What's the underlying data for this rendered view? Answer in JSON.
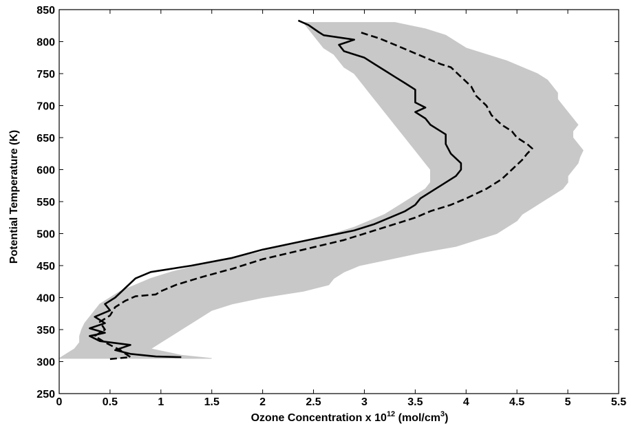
{
  "chart_data": {
    "type": "line",
    "title": "",
    "xlabel": {
      "prefix": "Ozone Concentration x 10",
      "exponent": "12",
      "unit_open": " (mol/cm",
      "unit_exponent": "3",
      "unit_close": ")"
    },
    "ylabel": "Potential Temperature (K)",
    "xlim": [
      0,
      5.5
    ],
    "ylim": [
      250,
      850
    ],
    "xticks": [
      "0",
      "0.5",
      "1",
      "1.5",
      "2",
      "2.5",
      "3",
      "3.5",
      "4",
      "4.5",
      "5",
      "5.5"
    ],
    "yticks": [
      "250",
      "300",
      "350",
      "400",
      "450",
      "500",
      "550",
      "600",
      "650",
      "700",
      "750",
      "800",
      "850"
    ],
    "grid": false,
    "legend": "none",
    "colors": {
      "envelope": "#c8c8c8",
      "solid_series": "#000000",
      "dashed_series": "#000000",
      "axes": "#000000"
    },
    "envelope": {
      "name": "",
      "theta": [
        305,
        310,
        320,
        330,
        340,
        350,
        360,
        370,
        380,
        390,
        400,
        410,
        420,
        430,
        440,
        450,
        460,
        470,
        480,
        490,
        500,
        510,
        520,
        530,
        540,
        550,
        560,
        570,
        580,
        590,
        600,
        610,
        620,
        630,
        640,
        650,
        660,
        670,
        680,
        690,
        700,
        710,
        720,
        730,
        740,
        750,
        760,
        770,
        780,
        790,
        800,
        810,
        820,
        830
      ],
      "x_min": [
        0.0,
        0.05,
        0.15,
        0.2,
        0.2,
        0.22,
        0.25,
        0.3,
        0.35,
        0.4,
        0.5,
        0.6,
        0.75,
        0.9,
        1.1,
        1.35,
        1.65,
        1.95,
        2.2,
        2.45,
        2.7,
        2.9,
        3.05,
        3.2,
        3.3,
        3.4,
        3.5,
        3.6,
        3.65,
        3.65,
        3.65,
        3.6,
        3.55,
        3.5,
        3.45,
        3.4,
        3.35,
        3.3,
        3.25,
        3.2,
        3.15,
        3.1,
        3.05,
        3.0,
        2.95,
        2.9,
        2.8,
        2.75,
        2.7,
        2.6,
        2.55,
        2.5,
        2.45,
        2.4
      ],
      "x_max": [
        1.5,
        1.2,
        0.9,
        1.0,
        1.1,
        1.2,
        1.3,
        1.4,
        1.5,
        1.7,
        2.0,
        2.4,
        2.65,
        2.7,
        2.8,
        2.95,
        3.25,
        3.55,
        3.9,
        4.1,
        4.3,
        4.4,
        4.5,
        4.55,
        4.65,
        4.75,
        4.85,
        4.95,
        5.0,
        5.0,
        5.05,
        5.1,
        5.12,
        5.15,
        5.1,
        5.05,
        5.05,
        5.1,
        5.05,
        5.0,
        4.95,
        4.9,
        4.9,
        4.85,
        4.8,
        4.7,
        4.55,
        4.4,
        4.2,
        4.0,
        3.9,
        3.8,
        3.6,
        3.3
      ]
    },
    "series": [
      {
        "name": "",
        "style": "solid",
        "x": [
          1.2,
          0.95,
          0.7,
          0.55,
          0.7,
          0.4,
          0.3,
          0.45,
          0.3,
          0.45,
          0.35,
          0.5,
          0.45,
          0.55,
          0.65,
          0.75,
          0.9,
          1.3,
          1.7,
          2.0,
          2.3,
          2.6,
          2.9,
          3.1,
          3.25,
          3.4,
          3.45,
          3.5,
          3.55,
          3.75,
          3.9,
          3.95,
          3.95,
          3.85,
          3.8,
          3.8,
          3.65,
          3.6,
          3.5,
          3.6,
          3.5,
          3.5,
          3.5,
          3.4,
          3.3,
          3.2,
          3.1,
          3.0,
          2.8,
          2.75,
          2.9,
          2.6,
          2.55,
          2.45,
          2.35
        ],
        "y": [
          307,
          308,
          312,
          318,
          326,
          332,
          340,
          345,
          352,
          360,
          370,
          380,
          390,
          400,
          415,
          430,
          440,
          450,
          462,
          475,
          485,
          495,
          505,
          515,
          525,
          535,
          540,
          545,
          555,
          575,
          590,
          600,
          610,
          625,
          640,
          655,
          670,
          680,
          690,
          697,
          705,
          715,
          725,
          735,
          745,
          755,
          765,
          775,
          785,
          795,
          803,
          810,
          815,
          826,
          833
        ]
      },
      {
        "name": "",
        "style": "dashed",
        "x": [
          0.5,
          0.7,
          0.6,
          0.45,
          0.35,
          0.45,
          0.4,
          0.5,
          0.55,
          0.65,
          0.75,
          0.95,
          1.0,
          1.15,
          1.4,
          1.7,
          2.0,
          2.4,
          2.8,
          3.1,
          3.3,
          3.5,
          3.65,
          3.85,
          4.0,
          4.2,
          4.35,
          4.45,
          4.55,
          4.6,
          4.65,
          4.6,
          4.5,
          4.45,
          4.35,
          4.25,
          4.2,
          4.1,
          4.05,
          3.95,
          3.85,
          3.75,
          3.6,
          3.45,
          3.3,
          3.15,
          3.05,
          2.95
        ],
        "y": [
          304,
          307,
          318,
          330,
          340,
          350,
          362,
          372,
          385,
          395,
          402,
          405,
          410,
          420,
          432,
          445,
          460,
          475,
          490,
          505,
          515,
          525,
          535,
          545,
          555,
          570,
          585,
          600,
          615,
          625,
          633,
          640,
          650,
          660,
          670,
          685,
          700,
          715,
          730,
          745,
          760,
          765,
          775,
          785,
          795,
          805,
          810,
          815
        ]
      }
    ]
  }
}
